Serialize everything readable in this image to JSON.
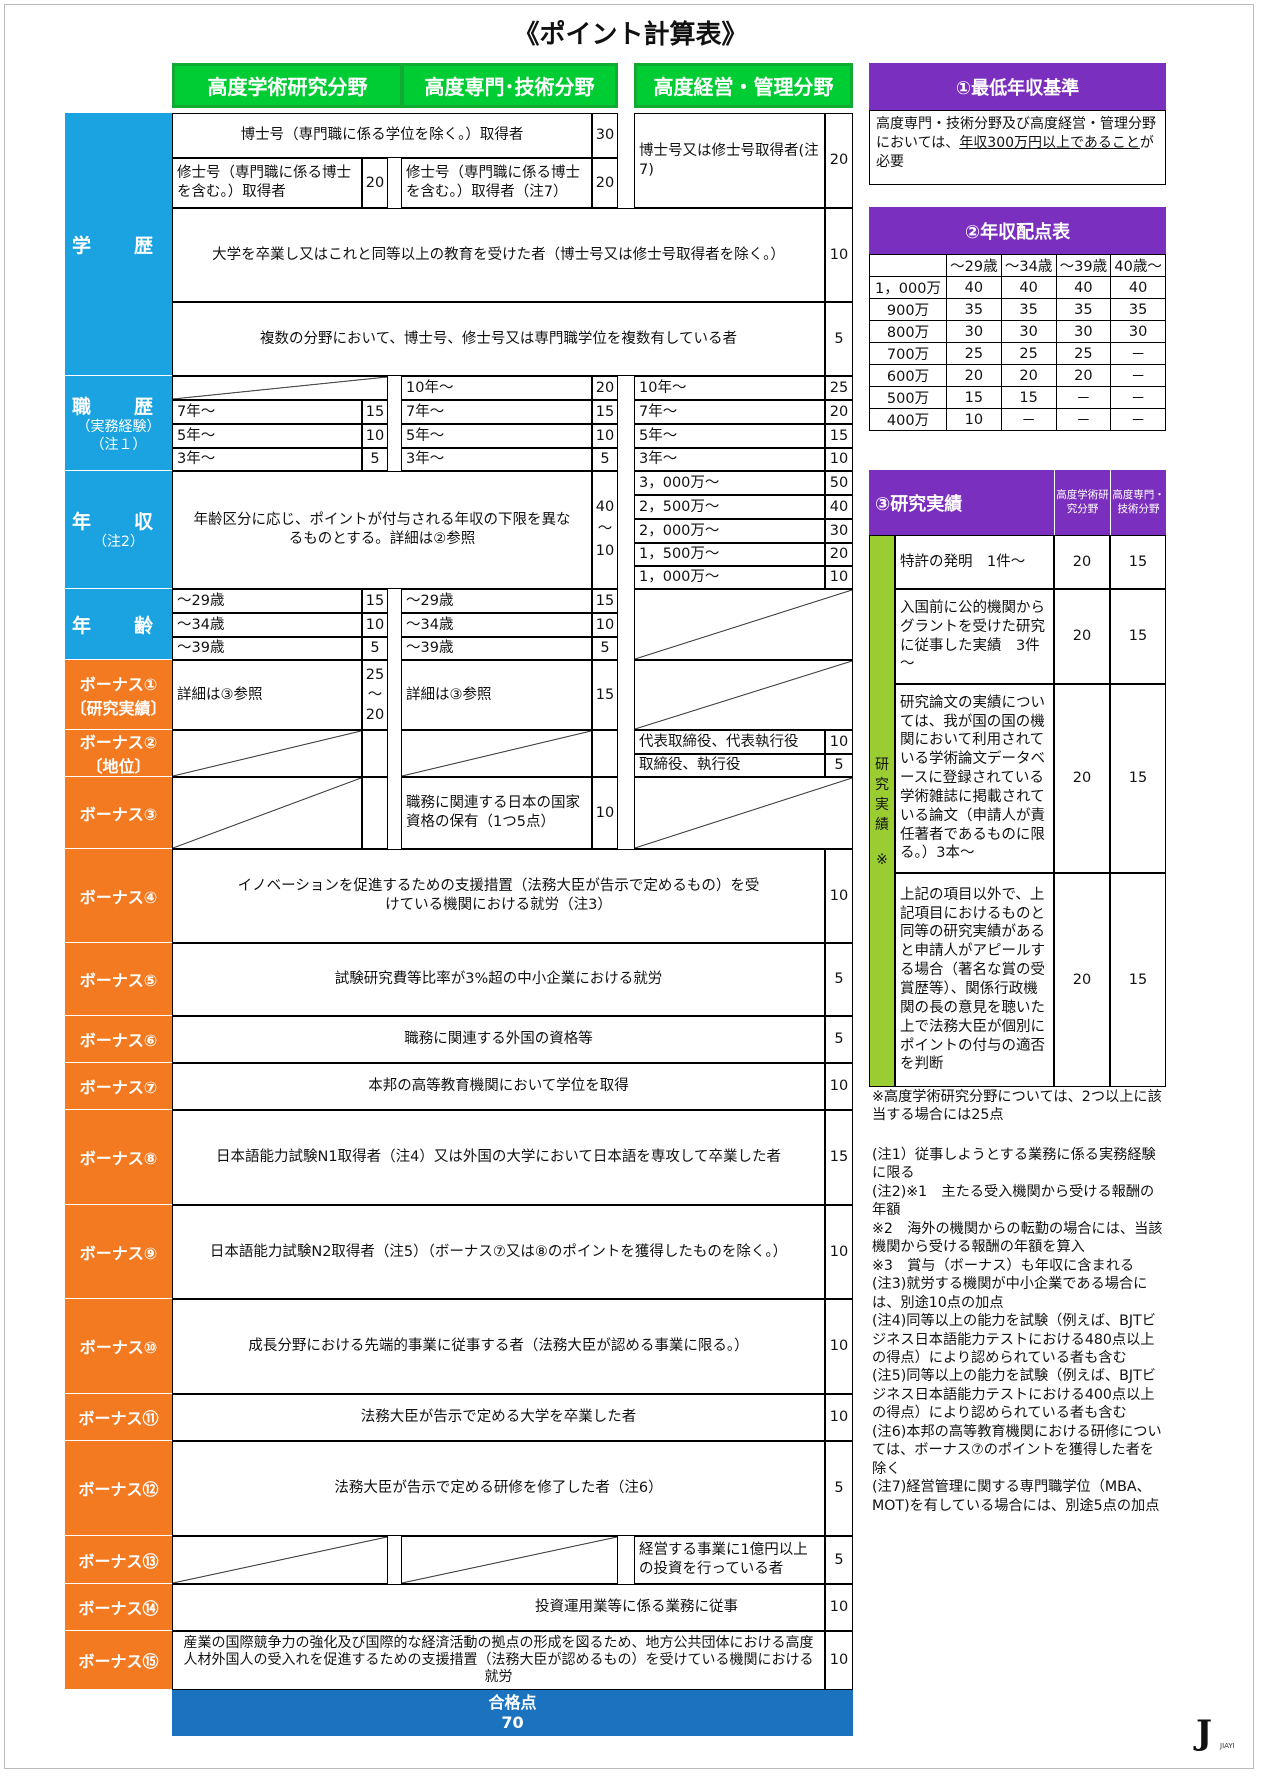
{
  "title": "《ポイント計算表》",
  "headers": [
    "高度学術研究分野",
    "高度専門･技術分野",
    "高度経営・管理分野"
  ],
  "education": {
    "label": "学　歴",
    "doctor_all": "博士号（専門職に係る学位を除く。）取得者",
    "doctor_all_pt": "30",
    "doctor_mgmt": "博士号又は修士号取得者(注7)",
    "doctor_mgmt_pt": "20",
    "master_academic": "修士号（専門職に係る博士を含む。）取得者",
    "master_academic_pt": "20",
    "master_tech": "修士号（専門職に係る博士を含む。）取得者（注7）",
    "master_tech_pt": "20",
    "bachelor": "大学を卒業し又はこれと同等以上の教育を受けた者（博士号又は修士号取得者を除く。）",
    "bachelor_pt": "10",
    "multiple": "複数の分野において、博士号、修士号又は専門職学位を複数有している者",
    "multiple_pt": "5"
  },
  "career": {
    "label": "職　歴",
    "sub": "（実務経験）（注１）",
    "academic": [
      [
        "7年～",
        "15"
      ],
      [
        "5年～",
        "10"
      ],
      [
        "3年～",
        "5"
      ]
    ],
    "tech": [
      [
        "10年～",
        "20"
      ],
      [
        "7年～",
        "15"
      ],
      [
        "5年～",
        "10"
      ],
      [
        "3年～",
        "5"
      ]
    ],
    "mgmt": [
      [
        "10年～",
        "25"
      ],
      [
        "7年～",
        "20"
      ],
      [
        "5年～",
        "15"
      ],
      [
        "3年～",
        "10"
      ]
    ]
  },
  "income": {
    "label": "年　収",
    "sub": "（注2）",
    "text": "年齢区分に応じ、ポイントが付与される年収の下限を異なるものとする。詳細は②参照",
    "range": [
      "40",
      "～",
      "10"
    ],
    "mgmt": [
      [
        "3，000万～",
        "50"
      ],
      [
        "2，500万～",
        "40"
      ],
      [
        "2，000万～",
        "30"
      ],
      [
        "1，500万～",
        "20"
      ],
      [
        "1，000万～",
        "10"
      ]
    ]
  },
  "age": {
    "label": "年　齢",
    "rows": [
      [
        "～29歳",
        "15"
      ],
      [
        "～34歳",
        "10"
      ],
      [
        "～39歳",
        "5"
      ]
    ]
  },
  "bonus1": {
    "label": "ボーナス①",
    "sub": "〔研究実績〕",
    "text": "詳細は③参照",
    "pt_academic": [
      "25",
      "～",
      "20"
    ],
    "pt_tech": "15"
  },
  "bonus2": {
    "label": "ボーナス②",
    "sub": "〔地位〕",
    "rows": [
      [
        "代表取締役、代表執行役",
        "10"
      ],
      [
        "取締役、執行役",
        "5"
      ]
    ]
  },
  "bonus3": {
    "label": "ボーナス③",
    "text": "職務に関連する日本の国家資格の保有（1つ5点）",
    "pt": "10"
  },
  "bonuses": [
    {
      "label": "ボーナス④",
      "text": "イノベーションを促進するための支援措置（法務大臣が告示で定めるもの）を受けている機関における就労（注3）",
      "pt": "10"
    },
    {
      "label": "ボーナス⑤",
      "text": "試験研究費等比率が3%超の中小企業における就労",
      "pt": "5"
    },
    {
      "label": "ボーナス⑥",
      "text": "職務に関連する外国の資格等",
      "pt": "5"
    },
    {
      "label": "ボーナス⑦",
      "text": "本邦の高等教育機関において学位を取得",
      "pt": "10"
    },
    {
      "label": "ボーナス⑧",
      "text": "日本語能力試験N1取得者（注4）又は外国の大学において日本語を専攻して卒業した者",
      "pt": "15"
    },
    {
      "label": "ボーナス⑨",
      "text": "日本語能力試験N2取得者（注5）（ボーナス⑦又は⑧のポイントを獲得したものを除く。）",
      "pt": "10"
    },
    {
      "label": "ボーナス⑩",
      "text": "成長分野における先端的事業に従事する者（法務大臣が認める事業に限る。）",
      "pt": "10"
    },
    {
      "label": "ボーナス⑪",
      "text": "法務大臣が告示で定める大学を卒業した者",
      "pt": "10"
    },
    {
      "label": "ボーナス⑫",
      "text": "法務大臣が告示で定める研修を修了した者（注6）",
      "pt": "5"
    }
  ],
  "bonus13": {
    "label": "ボーナス⑬",
    "text": "経営する事業に1億円以上の投資を行っている者",
    "pt": "5"
  },
  "bonus14": {
    "label": "ボーナス⑭",
    "text": "投資運用業等に係る業務に従事",
    "pt": "10"
  },
  "bonus15": {
    "label": "ボーナス⑮",
    "text": "産業の国際競争力の強化及び国際的な経済活動の拠点の形成を図るため、地方公共団体における高度人材外国人の受入れを促進するための支援措置（法務大臣が認めるもの）を受けている機関における就労",
    "pt": "10"
  },
  "pass": {
    "label": "合格点",
    "value": "70"
  },
  "min_income": {
    "title": "①最低年収基準",
    "text_a": "高度専門・技術分野及び高度経営・管理分野においては、",
    "text_u": "年収300万円以上であること",
    "text_b": "が必要"
  },
  "income_table": {
    "title": "②年収配点表",
    "cols": [
      "～29歳",
      "～34歳",
      "～39歳",
      "40歳～"
    ],
    "rows": [
      [
        "1，000万",
        "40",
        "40",
        "40",
        "40"
      ],
      [
        "900万",
        "35",
        "35",
        "35",
        "35"
      ],
      [
        "800万",
        "30",
        "30",
        "30",
        "30"
      ],
      [
        "700万",
        "25",
        "25",
        "25",
        "－"
      ],
      [
        "600万",
        "20",
        "20",
        "20",
        "－"
      ],
      [
        "500万",
        "15",
        "15",
        "－",
        "－"
      ],
      [
        "400万",
        "10",
        "－",
        "－",
        "－"
      ]
    ]
  },
  "research": {
    "title": "③研究実績",
    "col_a": "高度学術研究分野",
    "col_b": "高度専門・技術分野",
    "side": [
      "研",
      "究",
      "実",
      "績",
      "※"
    ],
    "rows": [
      [
        "特許の発明　1件～",
        "20",
        "15"
      ],
      [
        "入国前に公的機関からグラントを受けた研究に従事した実績　3件～",
        "20",
        "15"
      ],
      [
        "研究論文の実績については、我が国の国の機関において利用されている学術論文データベースに登録されている学術雑誌に掲載されている論文（申請人が責任著者であるものに限る。）3本～",
        "20",
        "15"
      ],
      [
        "上記の項目以外で、上記項目におけるものと同等の研究実績があると申請人がアピールする場合（著名な賞の受賞歴等）、関係行政機関の長の意見を聴いた上で法務大臣が個別にポイントの付与の適否を判断",
        "20",
        "15"
      ]
    ],
    "note": "※高度学術研究分野については、2つ以上に該当する場合には25点"
  },
  "notes": [
    "(注1）従事しようとする業務に係る実務経験に限る",
    "(注2)※1　主たる受入機関から受ける報酬の年額",
    "※2　海外の機関からの転勤の場合には、当該機関から受ける報酬の年額を算入",
    "※3　賞与（ボーナス）も年収に含まれる",
    "(注3)就労する機関が中小企業である場合には、別途10点の加点",
    "(注4)同等以上の能力を試験（例えば、BJTビジネス日本語能力テストにおける480点以上の得点）により認められている者も含む",
    "(注5)同等以上の能力を試験（例えば、BJTビジネス日本語能力テストにおける400点以上の得点）により認められている者も含む",
    "(注6)本邦の高等教育機関における研修については、ボーナス⑦のポイントを獲得した者を除く",
    "(注7)経営管理に関する専門職学位（MBA、MOT)を有している場合には、別途5点の加点"
  ],
  "logo": {
    "mark": "J",
    "text": "JIAYI"
  }
}
